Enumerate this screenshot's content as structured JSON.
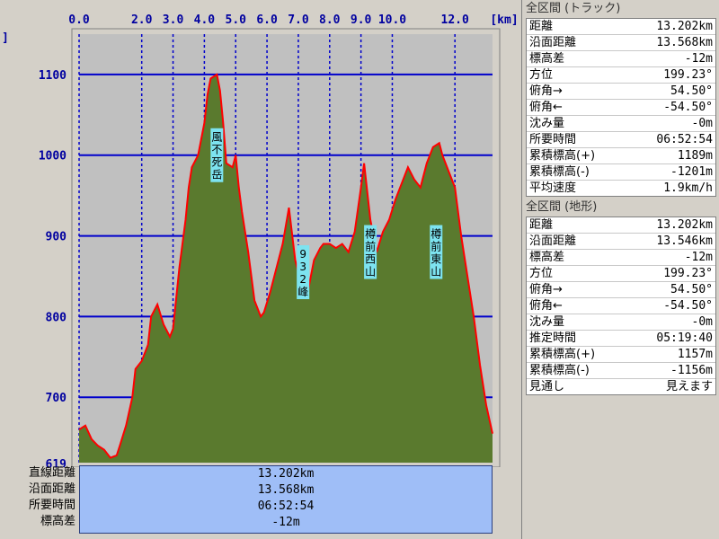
{
  "chart_data": {
    "type": "area",
    "x_unit": "[km]",
    "x_ticks": [
      "0.0",
      "2.0",
      "3.0",
      "4.0",
      "5.0",
      "6.0",
      "7.0",
      "8.0",
      "9.0",
      "10.0",
      "12.0"
    ],
    "x_tick_values": [
      0,
      2,
      3,
      4,
      5,
      6,
      7,
      8,
      9,
      10,
      12
    ],
    "x_range": [
      0,
      13.2
    ],
    "y_ticks": [
      "619",
      "700",
      "800",
      "900",
      "1000",
      "1100"
    ],
    "y_tick_values": [
      619,
      700,
      800,
      900,
      1000,
      1100
    ],
    "y_range": [
      619,
      1150
    ],
    "y_unit": "m",
    "grid": true,
    "colors": {
      "track_line": "#ff0000",
      "fill": "#5a7a2e",
      "grid": "#0000cc",
      "plot_bg": "#c0c0c0",
      "peak_label_bg": "#7de3f0"
    },
    "series": [
      {
        "x": [
          0,
          0.2,
          0.4,
          0.6,
          0.8,
          1.0,
          1.2,
          1.3,
          1.5,
          1.7,
          1.8,
          2.0,
          2.2,
          2.3,
          2.5,
          2.7,
          2.9,
          3.0,
          3.2,
          3.4,
          3.5,
          3.6,
          3.8,
          4.0,
          4.1,
          4.2,
          4.4,
          4.5,
          4.6,
          4.7,
          4.9,
          5.0,
          5.1,
          5.2,
          5.4,
          5.6,
          5.8,
          5.9,
          6.1,
          6.3,
          6.5,
          6.7,
          6.9,
          7.1,
          7.3,
          7.5,
          7.7,
          7.8,
          8.0,
          8.2,
          8.4,
          8.6,
          8.8,
          9.0,
          9.1,
          9.3,
          9.5,
          9.7,
          9.9,
          10.1,
          10.3,
          10.5,
          10.7,
          10.9,
          11.1,
          11.3,
          11.5,
          11.6,
          11.8,
          12.0,
          12.2,
          12.4,
          12.6,
          12.8,
          13.0,
          13.2
        ],
        "y": [
          660,
          665,
          648,
          640,
          635,
          625,
          628,
          640,
          665,
          700,
          735,
          745,
          765,
          800,
          815,
          790,
          775,
          785,
          860,
          920,
          960,
          985,
          1000,
          1040,
          1075,
          1095,
          1100,
          1080,
          1040,
          990,
          985,
          1000,
          960,
          930,
          880,
          820,
          800,
          805,
          830,
          860,
          890,
          935,
          870,
          840,
          830,
          870,
          885,
          890,
          890,
          885,
          890,
          880,
          905,
          960,
          990,
          920,
          880,
          905,
          920,
          945,
          965,
          985,
          970,
          960,
          990,
          1010,
          1015,
          1000,
          980,
          960,
          900,
          850,
          800,
          740,
          690,
          655
        ]
      }
    ],
    "annotations": [
      {
        "text": "風不死岳",
        "x": 4.4,
        "y": 1000
      },
      {
        "text": "932峰",
        "x": 7.15,
        "y": 855
      },
      {
        "text": "樽前西山",
        "x": 9.3,
        "y": 880
      },
      {
        "text": "樽前東山",
        "x": 11.4,
        "y": 880
      }
    ]
  },
  "summary_labels": [
    "直線距離",
    "沿面距離",
    "所要時間",
    "標高差"
  ],
  "summary_values": [
    "13.202km",
    "13.568km",
    "06:52:54",
    "-12m"
  ],
  "panel_track": {
    "title": "全区間 (トラック)",
    "rows": [
      {
        "label": "距離",
        "value": "13.202km"
      },
      {
        "label": "沿面距離",
        "value": "13.568km"
      },
      {
        "label": "標高差",
        "value": "-12m"
      },
      {
        "label": "方位",
        "value": "199.23°"
      },
      {
        "label": "俯角→",
        "value": "54.50°"
      },
      {
        "label": "俯角←",
        "value": "-54.50°"
      },
      {
        "label": "沈み量",
        "value": "-0m"
      },
      {
        "label": "所要時間",
        "value": "06:52:54"
      },
      {
        "label": "累積標高(+)",
        "value": "1189m"
      },
      {
        "label": "累積標高(-)",
        "value": "-1201m"
      },
      {
        "label": "平均速度",
        "value": "1.9km/h"
      }
    ]
  },
  "panel_terrain": {
    "title": "全区間 (地形)",
    "rows": [
      {
        "label": "距離",
        "value": "13.202km"
      },
      {
        "label": "沿面距離",
        "value": "13.546km"
      },
      {
        "label": "標高差",
        "value": "-12m"
      },
      {
        "label": "方位",
        "value": "199.23°"
      },
      {
        "label": "俯角→",
        "value": "54.50°"
      },
      {
        "label": "俯角←",
        "value": "-54.50°"
      },
      {
        "label": "沈み量",
        "value": "-0m"
      },
      {
        "label": "推定時間",
        "value": "05:19:40"
      },
      {
        "label": "累積標高(+)",
        "value": "1157m"
      },
      {
        "label": "累積標高(-)",
        "value": "-1156m"
      },
      {
        "label": "見通し",
        "value": "見えます"
      }
    ]
  }
}
